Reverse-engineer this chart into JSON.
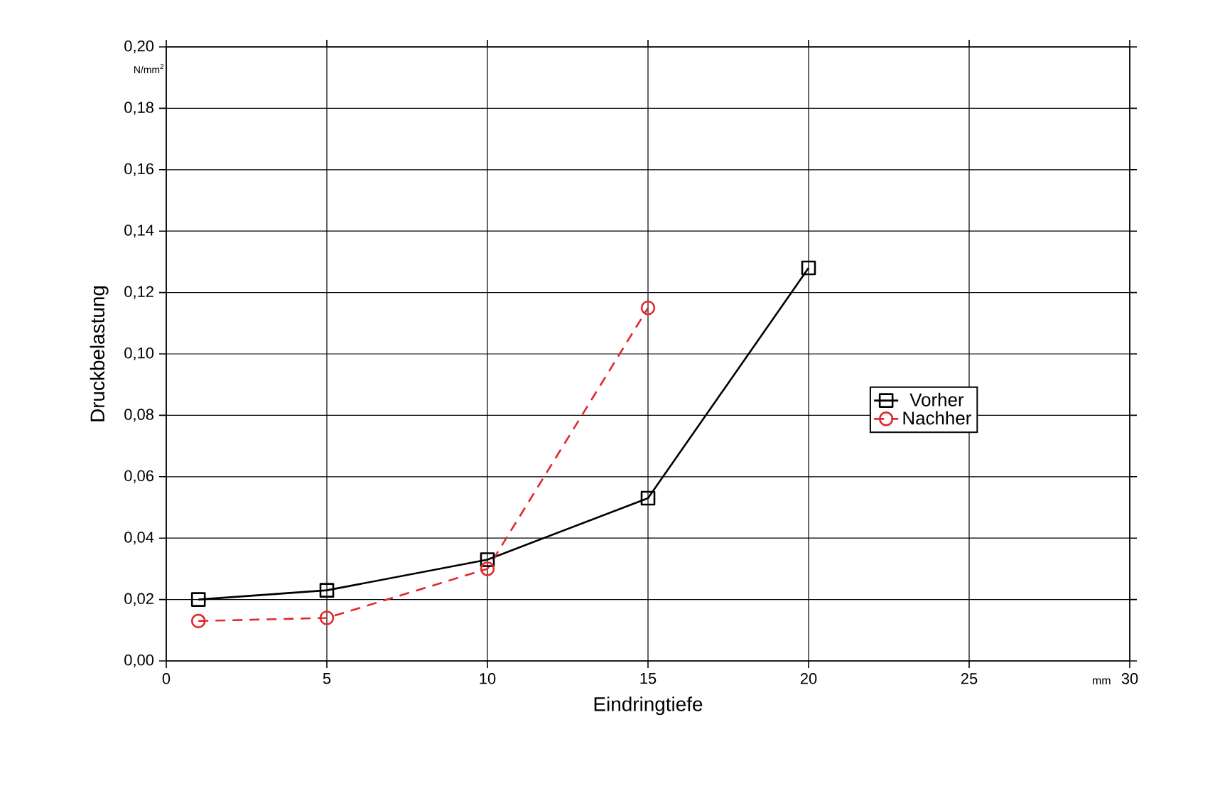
{
  "chart_data": {
    "type": "line",
    "xlabel": "Eindringtiefe",
    "ylabel": "Druckbelastung",
    "annotations": [
      "N/mm$^{2}$",
      "mm"
    ],
    "xlim": [
      0,
      30
    ],
    "xticks": [
      0,
      5,
      10,
      15,
      20,
      25,
      30
    ],
    "ylim": [
      0,
      0.2
    ],
    "yticks": [
      {
        "value": 0,
        "label": "0,00"
      },
      {
        "value": 0.02,
        "label": "0,02"
      },
      {
        "value": 0.04,
        "label": "0,04"
      },
      {
        "value": 0.06,
        "label": "0,06"
      },
      {
        "value": 0.08,
        "label": "0,08"
      },
      {
        "value": 0.1,
        "label": "0,10"
      },
      {
        "value": 0.12,
        "label": "0,12"
      },
      {
        "value": 0.14,
        "label": "0,14"
      },
      {
        "value": 0.16,
        "label": "0,16"
      },
      {
        "value": 0.18,
        "label": "0,18"
      },
      {
        "value": 0.2,
        "label": "0,20"
      }
    ],
    "grid": true,
    "legend": "right",
    "series": [
      {
        "name": "Vorher",
        "color": "#000000",
        "marker": "square",
        "line_style": "solid",
        "x": [
          1,
          5,
          10,
          15,
          20
        ],
        "values": [
          0.02,
          0.023,
          0.033,
          0.053,
          0.128
        ]
      },
      {
        "name": "Nachher",
        "color": "#e0282e",
        "marker": "circle",
        "line_style": "dashed",
        "x": [
          1,
          5,
          10,
          15
        ],
        "values": [
          0.013,
          0.014,
          0.03,
          0.115
        ]
      }
    ]
  }
}
